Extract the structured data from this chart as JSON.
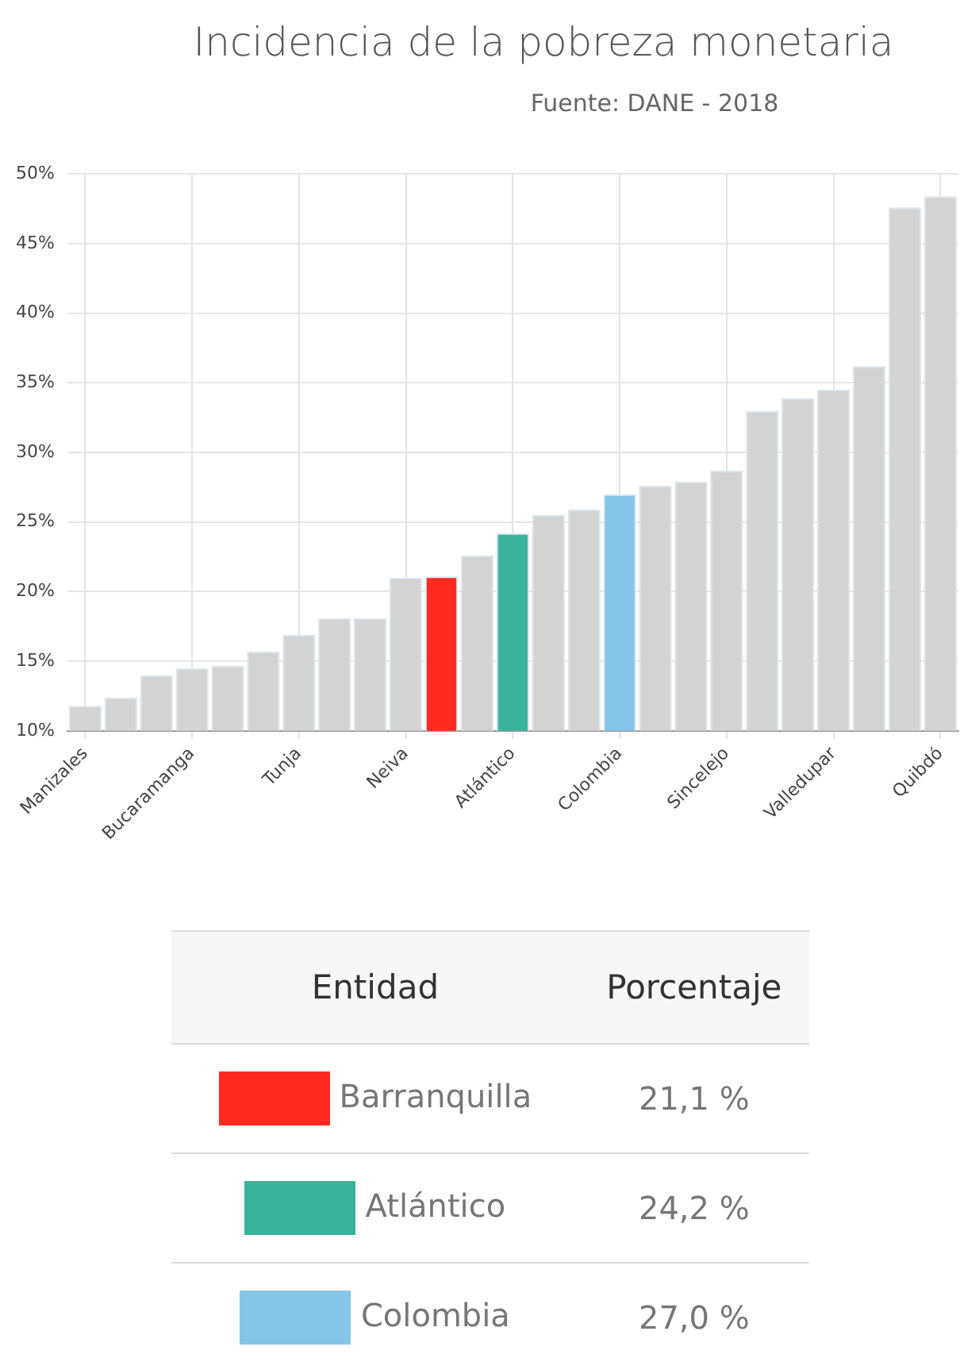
{
  "chart_data": {
    "type": "bar",
    "title": "Incidencia de la pobreza monetaria",
    "subtitle": "Fuente: DANE - 2018",
    "categories": [
      "Manizales",
      null,
      null,
      "Bucaramanga",
      null,
      null,
      "Tunja",
      null,
      null,
      "Neiva",
      null,
      null,
      "Atlántico",
      null,
      null,
      "Colombia",
      null,
      null,
      "Sincelejo",
      null,
      null,
      "Valledupar",
      null,
      null,
      "Quibdó"
    ],
    "values": [
      11.8,
      12.4,
      14.0,
      14.5,
      14.7,
      15.7,
      16.9,
      18.1,
      18.1,
      21.0,
      21.1,
      22.6,
      24.2,
      25.5,
      25.9,
      27.0,
      27.6,
      27.9,
      28.7,
      33.0,
      33.9,
      34.5,
      36.2,
      47.6,
      48.4
    ],
    "colors": [
      "#d3d3d3",
      "#d3d3d3",
      "#d3d3d3",
      "#d3d3d3",
      "#d3d3d3",
      "#d3d3d3",
      "#d3d3d3",
      "#d3d3d3",
      "#d3d3d3",
      "#d3d3d3",
      "#ff2a1f",
      "#d3d3d3",
      "#3ab39b",
      "#d3d3d3",
      "#d3d3d3",
      "#84c5e8",
      "#d3d3d3",
      "#d3d3d3",
      "#d3d3d3",
      "#d3d3d3",
      "#d3d3d3",
      "#d3d3d3",
      "#d3d3d3",
      "#d3d3d3",
      "#d3d3d3"
    ],
    "ylim": [
      10,
      50
    ],
    "yticks": [
      {
        "value": 10,
        "label": "10%"
      },
      {
        "value": 15,
        "label": "15%"
      },
      {
        "value": 20,
        "label": "20%"
      },
      {
        "value": 25,
        "label": "25%"
      },
      {
        "value": 30,
        "label": "30%"
      },
      {
        "value": 35,
        "label": "35%"
      },
      {
        "value": 40,
        "label": "40%"
      },
      {
        "value": 45,
        "label": "45%"
      },
      {
        "value": 50,
        "label": "50%"
      }
    ],
    "grid": true,
    "legend": false,
    "annotations": [
      "Entidad",
      "Porcentaje",
      "Barranquilla",
      "21,1 %",
      "Atlántico",
      "24,2 %",
      "Colombia",
      "27,0 %"
    ]
  }
}
